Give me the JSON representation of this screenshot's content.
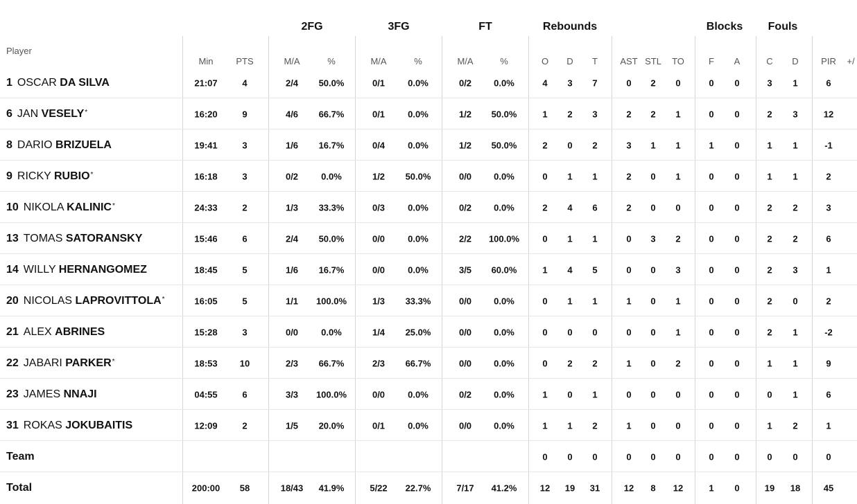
{
  "headers": {
    "player": "Player",
    "groups": {
      "fg2": "2FG",
      "fg3": "3FG",
      "ft": "FT",
      "reb": "Rebounds",
      "blk": "Blocks",
      "fouls": "Fouls"
    },
    "columns": {
      "min": "Min",
      "pts": "PTS",
      "fg2_ma": "M/A",
      "fg2_pct": "%",
      "fg3_ma": "M/A",
      "fg3_pct": "%",
      "ft_ma": "M/A",
      "ft_pct": "%",
      "reb_o": "O",
      "reb_d": "D",
      "reb_t": "T",
      "ast": "AST",
      "stl": "STL",
      "to": "TO",
      "blk_f": "F",
      "blk_a": "A",
      "foul_c": "C",
      "foul_d": "D",
      "pir": "PIR",
      "pm": "+/"
    }
  },
  "players": [
    {
      "num": "1",
      "first": "OSCAR",
      "last": "DA SILVA",
      "star": "",
      "min": "21:07",
      "pts": "4",
      "fg2_ma": "2/4",
      "fg2_pct": "50.0%",
      "fg3_ma": "0/1",
      "fg3_pct": "0.0%",
      "ft_ma": "0/2",
      "ft_pct": "0.0%",
      "reb_o": "4",
      "reb_d": "3",
      "reb_t": "7",
      "ast": "0",
      "stl": "2",
      "to": "0",
      "blk_f": "0",
      "blk_a": "0",
      "foul_c": "3",
      "foul_d": "1",
      "pir": "6"
    },
    {
      "num": "6",
      "first": "JAN",
      "last": "VESELY",
      "star": "*",
      "min": "16:20",
      "pts": "9",
      "fg2_ma": "4/6",
      "fg2_pct": "66.7%",
      "fg3_ma": "0/1",
      "fg3_pct": "0.0%",
      "ft_ma": "1/2",
      "ft_pct": "50.0%",
      "reb_o": "1",
      "reb_d": "2",
      "reb_t": "3",
      "ast": "2",
      "stl": "2",
      "to": "1",
      "blk_f": "0",
      "blk_a": "0",
      "foul_c": "2",
      "foul_d": "3",
      "pir": "12"
    },
    {
      "num": "8",
      "first": "DARIO",
      "last": "BRIZUELA",
      "star": "",
      "min": "19:41",
      "pts": "3",
      "fg2_ma": "1/6",
      "fg2_pct": "16.7%",
      "fg3_ma": "0/4",
      "fg3_pct": "0.0%",
      "ft_ma": "1/2",
      "ft_pct": "50.0%",
      "reb_o": "2",
      "reb_d": "0",
      "reb_t": "2",
      "ast": "3",
      "stl": "1",
      "to": "1",
      "blk_f": "1",
      "blk_a": "0",
      "foul_c": "1",
      "foul_d": "1",
      "pir": "-1"
    },
    {
      "num": "9",
      "first": "RICKY",
      "last": "RUBIO",
      "star": "*",
      "min": "16:18",
      "pts": "3",
      "fg2_ma": "0/2",
      "fg2_pct": "0.0%",
      "fg3_ma": "1/2",
      "fg3_pct": "50.0%",
      "ft_ma": "0/0",
      "ft_pct": "0.0%",
      "reb_o": "0",
      "reb_d": "1",
      "reb_t": "1",
      "ast": "2",
      "stl": "0",
      "to": "1",
      "blk_f": "0",
      "blk_a": "0",
      "foul_c": "1",
      "foul_d": "1",
      "pir": "2"
    },
    {
      "num": "10",
      "first": "NIKOLA",
      "last": "KALINIC",
      "star": "*",
      "min": "24:33",
      "pts": "2",
      "fg2_ma": "1/3",
      "fg2_pct": "33.3%",
      "fg3_ma": "0/3",
      "fg3_pct": "0.0%",
      "ft_ma": "0/2",
      "ft_pct": "0.0%",
      "reb_o": "2",
      "reb_d": "4",
      "reb_t": "6",
      "ast": "2",
      "stl": "0",
      "to": "0",
      "blk_f": "0",
      "blk_a": "0",
      "foul_c": "2",
      "foul_d": "2",
      "pir": "3"
    },
    {
      "num": "13",
      "first": "TOMAS",
      "last": "SATORANSKY",
      "star": "",
      "min": "15:46",
      "pts": "6",
      "fg2_ma": "2/4",
      "fg2_pct": "50.0%",
      "fg3_ma": "0/0",
      "fg3_pct": "0.0%",
      "ft_ma": "2/2",
      "ft_pct": "100.0%",
      "reb_o": "0",
      "reb_d": "1",
      "reb_t": "1",
      "ast": "0",
      "stl": "3",
      "to": "2",
      "blk_f": "0",
      "blk_a": "0",
      "foul_c": "2",
      "foul_d": "2",
      "pir": "6"
    },
    {
      "num": "14",
      "first": "WILLY",
      "last": "HERNANGOMEZ",
      "star": "",
      "min": "18:45",
      "pts": "5",
      "fg2_ma": "1/6",
      "fg2_pct": "16.7%",
      "fg3_ma": "0/0",
      "fg3_pct": "0.0%",
      "ft_ma": "3/5",
      "ft_pct": "60.0%",
      "reb_o": "1",
      "reb_d": "4",
      "reb_t": "5",
      "ast": "0",
      "stl": "0",
      "to": "3",
      "blk_f": "0",
      "blk_a": "0",
      "foul_c": "2",
      "foul_d": "3",
      "pir": "1"
    },
    {
      "num": "20",
      "first": "NICOLAS",
      "last": "LAPROVITTOLA",
      "star": "*",
      "min": "16:05",
      "pts": "5",
      "fg2_ma": "1/1",
      "fg2_pct": "100.0%",
      "fg3_ma": "1/3",
      "fg3_pct": "33.3%",
      "ft_ma": "0/0",
      "ft_pct": "0.0%",
      "reb_o": "0",
      "reb_d": "1",
      "reb_t": "1",
      "ast": "1",
      "stl": "0",
      "to": "1",
      "blk_f": "0",
      "blk_a": "0",
      "foul_c": "2",
      "foul_d": "0",
      "pir": "2"
    },
    {
      "num": "21",
      "first": "ALEX",
      "last": "ABRINES",
      "star": "",
      "min": "15:28",
      "pts": "3",
      "fg2_ma": "0/0",
      "fg2_pct": "0.0%",
      "fg3_ma": "1/4",
      "fg3_pct": "25.0%",
      "ft_ma": "0/0",
      "ft_pct": "0.0%",
      "reb_o": "0",
      "reb_d": "0",
      "reb_t": "0",
      "ast": "0",
      "stl": "0",
      "to": "1",
      "blk_f": "0",
      "blk_a": "0",
      "foul_c": "2",
      "foul_d": "1",
      "pir": "-2"
    },
    {
      "num": "22",
      "first": "JABARI",
      "last": "PARKER",
      "star": "*",
      "min": "18:53",
      "pts": "10",
      "fg2_ma": "2/3",
      "fg2_pct": "66.7%",
      "fg3_ma": "2/3",
      "fg3_pct": "66.7%",
      "ft_ma": "0/0",
      "ft_pct": "0.0%",
      "reb_o": "0",
      "reb_d": "2",
      "reb_t": "2",
      "ast": "1",
      "stl": "0",
      "to": "2",
      "blk_f": "0",
      "blk_a": "0",
      "foul_c": "1",
      "foul_d": "1",
      "pir": "9"
    },
    {
      "num": "23",
      "first": "JAMES",
      "last": "NNAJI",
      "star": "",
      "min": "04:55",
      "pts": "6",
      "fg2_ma": "3/3",
      "fg2_pct": "100.0%",
      "fg3_ma": "0/0",
      "fg3_pct": "0.0%",
      "ft_ma": "0/2",
      "ft_pct": "0.0%",
      "reb_o": "1",
      "reb_d": "0",
      "reb_t": "1",
      "ast": "0",
      "stl": "0",
      "to": "0",
      "blk_f": "0",
      "blk_a": "0",
      "foul_c": "0",
      "foul_d": "1",
      "pir": "6"
    },
    {
      "num": "31",
      "first": "ROKAS",
      "last": "JOKUBAITIS",
      "star": "",
      "min": "12:09",
      "pts": "2",
      "fg2_ma": "1/5",
      "fg2_pct": "20.0%",
      "fg3_ma": "0/1",
      "fg3_pct": "0.0%",
      "ft_ma": "0/0",
      "ft_pct": "0.0%",
      "reb_o": "1",
      "reb_d": "1",
      "reb_t": "2",
      "ast": "1",
      "stl": "0",
      "to": "0",
      "blk_f": "0",
      "blk_a": "0",
      "foul_c": "1",
      "foul_d": "2",
      "pir": "1"
    }
  ],
  "team": {
    "label": "Team",
    "reb_o": "0",
    "reb_d": "0",
    "reb_t": "0",
    "ast": "0",
    "stl": "0",
    "to": "0",
    "blk_f": "0",
    "blk_a": "0",
    "foul_c": "0",
    "foul_d": "0",
    "pir": "0"
  },
  "total": {
    "label": "Total",
    "min": "200:00",
    "pts": "58",
    "fg2_ma": "18/43",
    "fg2_pct": "41.9%",
    "fg3_ma": "5/22",
    "fg3_pct": "22.7%",
    "ft_ma": "7/17",
    "ft_pct": "41.2%",
    "reb_o": "12",
    "reb_d": "19",
    "reb_t": "31",
    "ast": "12",
    "stl": "8",
    "to": "12",
    "blk_f": "1",
    "blk_a": "0",
    "foul_c": "19",
    "foul_d": "18",
    "pir": "45"
  }
}
